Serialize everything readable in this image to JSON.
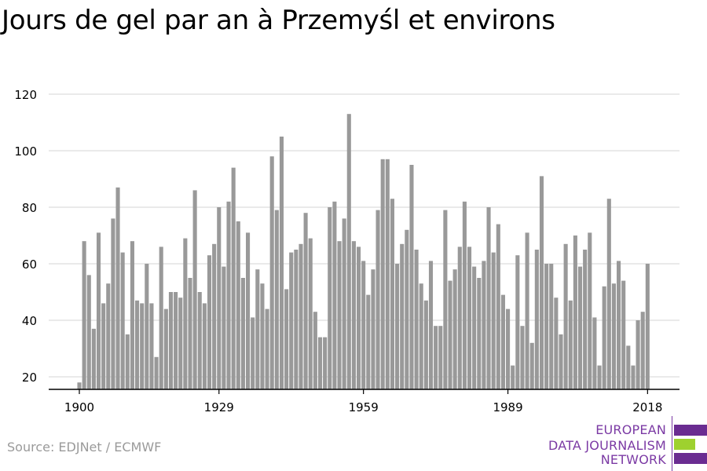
{
  "title": "Jours de gel par an à Przemyśl et environs",
  "source": "Source: EDJNet / ECMWF",
  "logo": {
    "lines": [
      "EUROPEAN",
      "DATA JOURNALISM",
      "NETWORK"
    ],
    "colors": [
      "#6a2c91",
      "#9ed12f",
      "#6a2c91"
    ]
  },
  "colors": {
    "bar": "#999999",
    "grid": "#dddddd",
    "axis": "#000000"
  },
  "chart_data": {
    "type": "bar",
    "title": "Jours de gel par an à Przemyśl et environs",
    "xlabel": "",
    "ylabel": "",
    "ylim": [
      15,
      120
    ],
    "y_ticks": [
      20,
      40,
      60,
      80,
      100,
      120
    ],
    "x_ticks": [
      1900,
      1929,
      1959,
      1989,
      2018
    ],
    "grid": true,
    "categories": [
      1900,
      1901,
      1902,
      1903,
      1904,
      1905,
      1906,
      1907,
      1908,
      1909,
      1910,
      1911,
      1912,
      1913,
      1914,
      1915,
      1916,
      1917,
      1918,
      1919,
      1920,
      1921,
      1922,
      1923,
      1924,
      1925,
      1926,
      1927,
      1928,
      1929,
      1930,
      1931,
      1932,
      1933,
      1934,
      1935,
      1936,
      1937,
      1938,
      1939,
      1940,
      1941,
      1942,
      1943,
      1944,
      1945,
      1946,
      1947,
      1948,
      1949,
      1950,
      1951,
      1952,
      1953,
      1954,
      1955,
      1956,
      1957,
      1958,
      1959,
      1960,
      1961,
      1962,
      1963,
      1964,
      1965,
      1966,
      1967,
      1968,
      1969,
      1970,
      1971,
      1972,
      1973,
      1974,
      1975,
      1976,
      1977,
      1978,
      1979,
      1980,
      1981,
      1982,
      1983,
      1984,
      1985,
      1986,
      1987,
      1988,
      1989,
      1990,
      1991,
      1992,
      1993,
      1994,
      1995,
      1996,
      1997,
      1998,
      1999,
      2000,
      2001,
      2002,
      2003,
      2004,
      2005,
      2006,
      2007,
      2008,
      2009,
      2010,
      2011,
      2012,
      2013,
      2014,
      2015,
      2016,
      2017,
      2018
    ],
    "values": [
      18,
      68,
      56,
      37,
      71,
      46,
      53,
      76,
      87,
      64,
      35,
      68,
      47,
      46,
      60,
      46,
      27,
      66,
      44,
      50,
      50,
      48,
      69,
      55,
      86,
      50,
      46,
      63,
      67,
      80,
      59,
      82,
      94,
      75,
      55,
      71,
      41,
      58,
      53,
      44,
      98,
      79,
      105,
      51,
      64,
      65,
      67,
      78,
      69,
      43,
      34,
      34,
      80,
      82,
      68,
      76,
      113,
      68,
      66,
      61,
      49,
      58,
      79,
      97,
      97,
      83,
      60,
      67,
      72,
      95,
      65,
      53,
      47,
      61,
      38,
      38,
      79,
      54,
      58,
      66,
      82,
      66,
      59,
      55,
      61,
      80,
      64,
      74,
      49,
      44,
      24,
      63,
      38,
      71,
      32,
      65,
      91,
      60,
      60,
      48,
      35,
      67,
      47,
      70,
      59,
      65,
      71,
      41,
      24,
      52,
      83,
      53,
      61,
      54,
      31,
      24,
      40,
      43,
      60
    ]
  }
}
